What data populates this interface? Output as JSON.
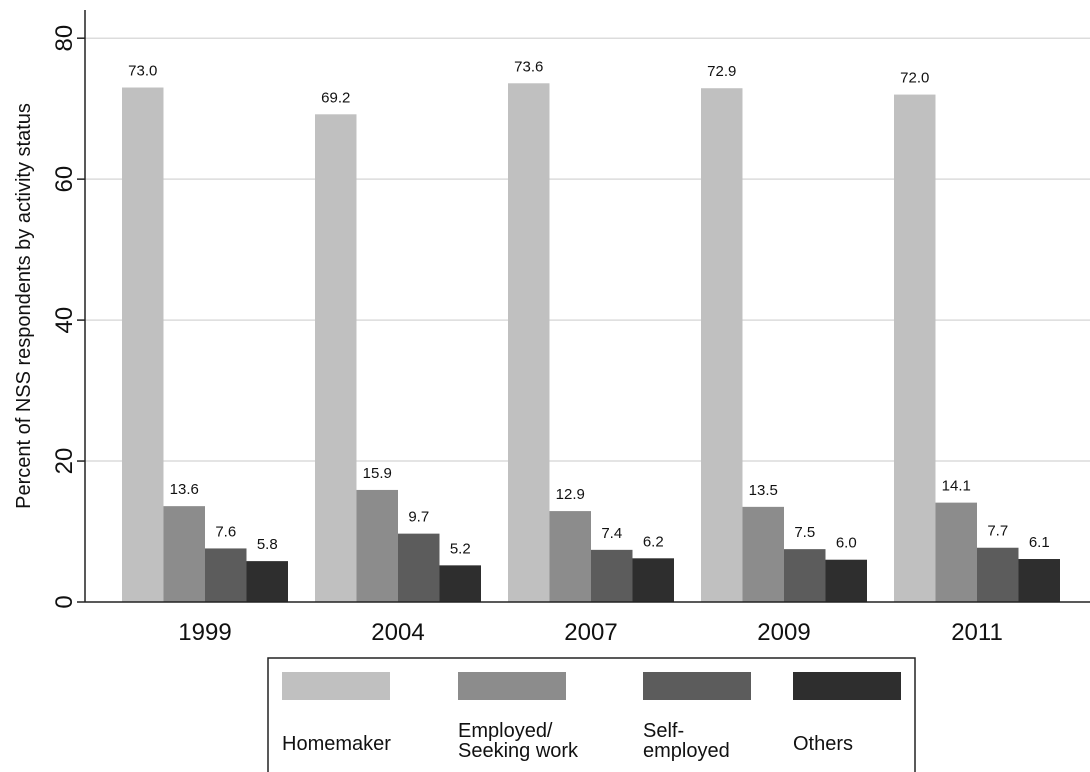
{
  "chart_data": {
    "type": "bar",
    "y_label": "Percent of NSS respondents by activity status",
    "categories": [
      "1999",
      "2004",
      "2007",
      "2009",
      "2011"
    ],
    "series": [
      {
        "name": "Homemaker",
        "color": "#c0c0c0",
        "values": [
          73.0,
          69.2,
          73.6,
          72.9,
          72.0
        ],
        "value_labels": [
          "73.0",
          "69.2",
          "73.6",
          "72.9",
          "72.0"
        ]
      },
      {
        "name": "Employed/\nSeeking work",
        "color": "#8c8c8c",
        "values": [
          13.6,
          15.9,
          12.9,
          13.5,
          14.1
        ],
        "value_labels": [
          "13.6",
          "15.9",
          "12.9",
          "13.5",
          "14.1"
        ]
      },
      {
        "name": "Self-\nemployed",
        "color": "#5c5c5c",
        "values": [
          7.6,
          9.7,
          7.4,
          7.5,
          7.7
        ],
        "value_labels": [
          "7.6",
          "9.7",
          "7.4",
          "7.5",
          "7.7"
        ]
      },
      {
        "name": "Others",
        "color": "#2e2e2e",
        "values": [
          5.8,
          5.2,
          6.2,
          6.0,
          6.1
        ],
        "value_labels": [
          "5.8",
          "5.2",
          "6.2",
          "6.0",
          "6.1"
        ]
      }
    ],
    "ylim": [
      0,
      84
    ],
    "yticks": [
      0,
      20,
      40,
      60,
      80
    ],
    "grid": true,
    "legend": "bottom"
  }
}
